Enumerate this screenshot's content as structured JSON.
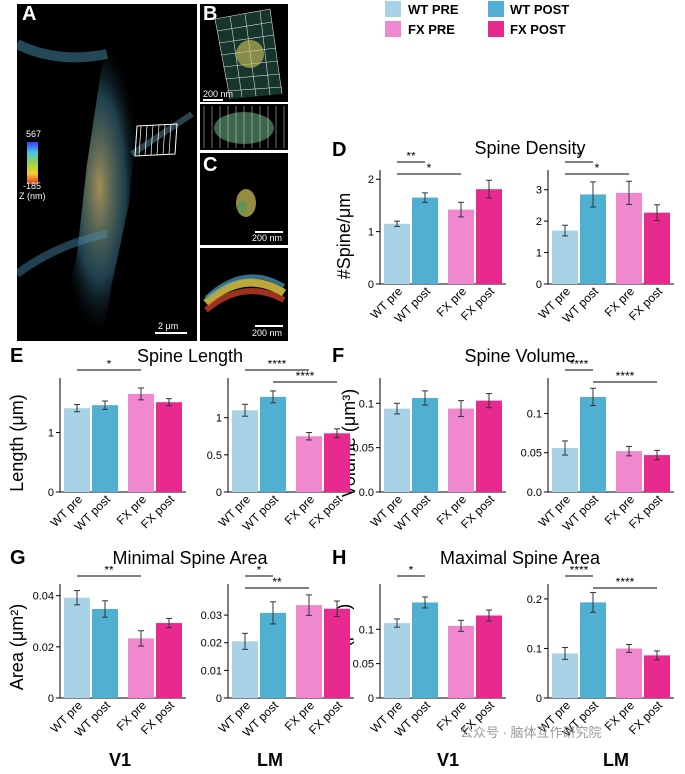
{
  "colors": {
    "wt_pre": "#a8d3e6",
    "wt_post": "#4fb0d2",
    "fx_pre": "#ef88cf",
    "fx_post": "#e82a8e"
  },
  "panel_labels": {
    "A": "A",
    "B": "B",
    "C": "C",
    "D": "D",
    "E": "E",
    "F": "F",
    "G": "G",
    "H": "H"
  },
  "microscopy": {
    "colorbar_max": "567",
    "colorbar_min": "-185",
    "colorbar_unit": "Z (nm)",
    "scale_a": "2 μm",
    "scale_b": "200 nm",
    "scale_c1": "200 nm",
    "scale_c2": "200 nm"
  },
  "legend": {
    "wt_pre": "WT PRE",
    "wt_post": "WT POST",
    "fx_pre": "FX PRE",
    "fx_post": "FX  POST"
  },
  "titles": {
    "D": "Spine Density",
    "E": "Spine Length",
    "F": "Spine Volume",
    "G": "Minimal Spine Area",
    "H": "Maximal Spine Area"
  },
  "ylabels": {
    "D": "#Spine/μm",
    "E": "Length (μm)",
    "F": "Volume (μm³)",
    "G": "Area (μm²)",
    "H": "Area (μm²)"
  },
  "regions": {
    "v1": "V1",
    "lm": "LM",
    "v1_h": "V1",
    "lm_h": "LM"
  },
  "watermark": "公众号 · 脑体互作研究院",
  "chart_data": [
    {
      "id": "D_V1",
      "type": "bar",
      "categories": [
        "WT pre",
        "WT post",
        "FX pre",
        "FX post"
      ],
      "values": [
        1.15,
        1.65,
        1.42,
        1.81
      ],
      "errors": [
        0.05,
        0.09,
        0.14,
        0.17
      ],
      "ylim": [
        0,
        2.1
      ],
      "yticks": [
        0,
        1,
        2
      ],
      "ytick_labels": [
        "0",
        "1",
        "2"
      ],
      "sig": [
        {
          "from": 0,
          "to": 1,
          "label": "**"
        },
        {
          "from": 0,
          "to": 2,
          "label": "*"
        }
      ]
    },
    {
      "id": "D_LM",
      "type": "bar",
      "categories": [
        "WT pre",
        "WT post",
        "FX pre",
        "FX post"
      ],
      "values": [
        1.7,
        2.85,
        2.9,
        2.27
      ],
      "errors": [
        0.17,
        0.4,
        0.37,
        0.25
      ],
      "ylim": [
        0,
        3.5
      ],
      "yticks": [
        0,
        1,
        2,
        3
      ],
      "ytick_labels": [
        "0",
        "1",
        "2",
        "3"
      ],
      "sig": [
        {
          "from": 0,
          "to": 1,
          "label": "*"
        },
        {
          "from": 0,
          "to": 2,
          "label": "*"
        }
      ]
    },
    {
      "id": "E_V1",
      "type": "bar",
      "categories": [
        "WT pre",
        "WT post",
        "FX pre",
        "FX post"
      ],
      "values": [
        1.41,
        1.46,
        1.65,
        1.51
      ],
      "errors": [
        0.06,
        0.07,
        0.1,
        0.06
      ],
      "ylim": [
        0,
        1.85
      ],
      "yticks": [
        0,
        1
      ],
      "ytick_labels": [
        "0",
        "1"
      ],
      "sig": [
        {
          "from": 0,
          "to": 2,
          "label": "*"
        }
      ]
    },
    {
      "id": "E_LM",
      "type": "bar",
      "categories": [
        "WT pre",
        "WT post",
        "FX pre",
        "FX post"
      ],
      "values": [
        1.1,
        1.28,
        0.75,
        0.79
      ],
      "errors": [
        0.08,
        0.08,
        0.05,
        0.06
      ],
      "ylim": [
        0,
        1.48
      ],
      "yticks": [
        0,
        0.5,
        1
      ],
      "ytick_labels": [
        "0",
        "0.5",
        "1"
      ],
      "sig": [
        {
          "from": 0,
          "to": 2,
          "label": "****"
        },
        {
          "from": 1,
          "to": 3,
          "label": "****"
        }
      ]
    },
    {
      "id": "F_V1",
      "type": "bar",
      "categories": [
        "WT pre",
        "WT post",
        "FX pre",
        "FX post"
      ],
      "values": [
        0.094,
        0.106,
        0.094,
        0.103
      ],
      "errors": [
        0.006,
        0.008,
        0.009,
        0.008
      ],
      "ylim": [
        0,
        0.124
      ],
      "yticks": [
        0,
        0.05,
        0.1
      ],
      "ytick_labels": [
        "0.0",
        "0.05",
        "0.1"
      ],
      "sig": []
    },
    {
      "id": "F_LM",
      "type": "bar",
      "categories": [
        "WT pre",
        "WT post",
        "FX pre",
        "FX post"
      ],
      "values": [
        0.056,
        0.121,
        0.052,
        0.047
      ],
      "errors": [
        0.009,
        0.011,
        0.006,
        0.006
      ],
      "ylim": [
        0,
        0.14
      ],
      "yticks": [
        0,
        0.05,
        0.1
      ],
      "ytick_labels": [
        "0.0",
        "0.05",
        "0.1"
      ],
      "sig": [
        {
          "from": 0,
          "to": 1,
          "label": "****"
        },
        {
          "from": 1,
          "to": 3,
          "label": "****"
        }
      ]
    },
    {
      "id": "G_V1",
      "type": "bar",
      "categories": [
        "WT pre",
        "WT post",
        "FX pre",
        "FX post"
      ],
      "values": [
        0.0392,
        0.0348,
        0.0233,
        0.0293
      ],
      "errors": [
        0.0028,
        0.0032,
        0.003,
        0.0018
      ],
      "ylim": [
        0,
        0.043
      ],
      "yticks": [
        0,
        0.02,
        0.04
      ],
      "ytick_labels": [
        "0",
        "0.02",
        "0.04"
      ],
      "sig": [
        {
          "from": 0,
          "to": 2,
          "label": "**"
        }
      ]
    },
    {
      "id": "G_LM",
      "type": "bar",
      "categories": [
        "WT pre",
        "WT post",
        "FX pre",
        "FX post"
      ],
      "values": [
        0.0205,
        0.0308,
        0.0336,
        0.0323
      ],
      "errors": [
        0.0029,
        0.004,
        0.0037,
        0.0028
      ],
      "ylim": [
        0,
        0.0398
      ],
      "yticks": [
        0,
        0.01,
        0.02,
        0.03
      ],
      "ytick_labels": [
        "0",
        "0.01",
        "0.02",
        "0.03"
      ],
      "sig": [
        {
          "from": 0,
          "to": 1,
          "label": "*"
        },
        {
          "from": 0,
          "to": 2,
          "label": "**"
        }
      ]
    },
    {
      "id": "H_V1",
      "type": "bar",
      "categories": [
        "WT pre",
        "WT post",
        "FX pre",
        "FX post"
      ],
      "values": [
        0.109,
        0.139,
        0.105,
        0.12
      ],
      "errors": [
        0.006,
        0.008,
        0.008,
        0.008
      ],
      "ylim": [
        0,
        0.16
      ],
      "yticks": [
        0,
        0.05,
        0.1
      ],
      "ytick_labels": [
        "0",
        "0.05",
        "0.1"
      ],
      "sig": [
        {
          "from": 0,
          "to": 1,
          "label": "*"
        }
      ]
    },
    {
      "id": "H_LM",
      "type": "bar",
      "categories": [
        "WT pre",
        "WT post",
        "FX pre",
        "FX post"
      ],
      "values": [
        0.09,
        0.193,
        0.1,
        0.086
      ],
      "errors": [
        0.012,
        0.02,
        0.008,
        0.009
      ],
      "ylim": [
        0,
        0.222
      ],
      "yticks": [
        0,
        0.1,
        0.2
      ],
      "ytick_labels": [
        "0",
        "0.1",
        "0.2"
      ],
      "sig": [
        {
          "from": 0,
          "to": 1,
          "label": "****"
        },
        {
          "from": 1,
          "to": 3,
          "label": "****"
        }
      ]
    }
  ]
}
